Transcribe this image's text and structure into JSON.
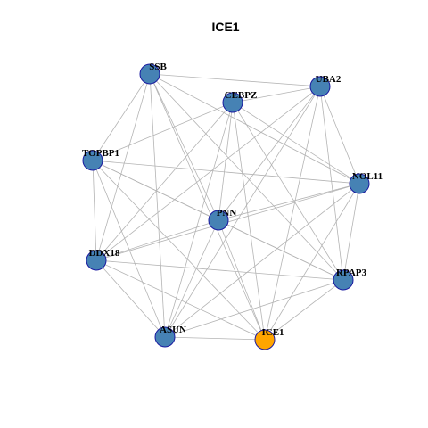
{
  "title": "ICE1",
  "nodes": [
    {
      "label": "SSB",
      "color": "#4682b4"
    },
    {
      "label": "CEBPZ",
      "color": "#4682b4"
    },
    {
      "label": "UBA2",
      "color": "#4682b4"
    },
    {
      "label": "TOPBP1",
      "color": "#4682b4"
    },
    {
      "label": "NOL11",
      "color": "#4682b4"
    },
    {
      "label": "PNN",
      "color": "#4682b4"
    },
    {
      "label": "DDX18",
      "color": "#4682b4"
    },
    {
      "label": "RPAP3",
      "color": "#4682b4"
    },
    {
      "label": "ASUN",
      "color": "#4682b4"
    },
    {
      "label": "ICE1",
      "color": "#ffa500"
    }
  ]
}
